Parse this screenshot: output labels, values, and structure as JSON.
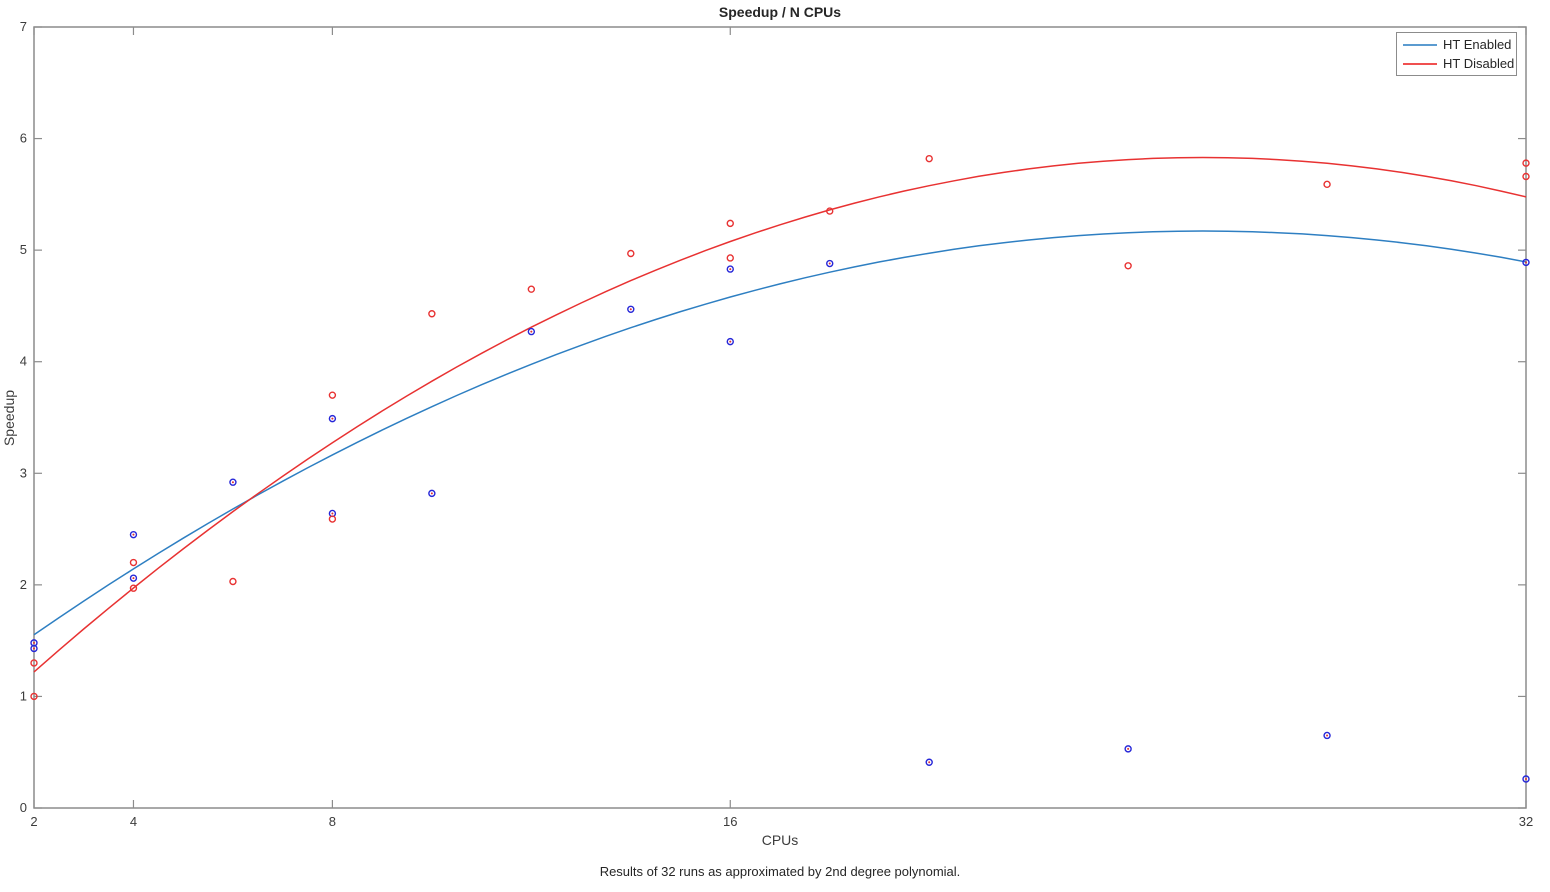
{
  "figure": {
    "title": "Speedup / N CPUs",
    "xlabel": "CPUs",
    "ylabel": "Speedup",
    "caption": "Results of 32 runs as approximated by 2nd degree polynomial."
  },
  "legend": {
    "position": "top-right",
    "items": [
      {
        "label": "HT Enabled",
        "color": "#5b9bd0"
      },
      {
        "label": "HT Disabled",
        "color": "#f05050"
      }
    ]
  },
  "colors": {
    "axis": "#8c8c8c",
    "tick_text": "#3c3c3c",
    "ht_enabled_line": "#2e7fc2",
    "ht_enabled_marker": "#2626d8",
    "ht_enabled_marker_center": "#e03030",
    "ht_disabled_line": "#e83232",
    "ht_disabled_marker": "#e83232"
  },
  "chart_data": {
    "type": "scatter",
    "title": "Speedup / N CPUs",
    "xlabel": "CPUs",
    "ylabel": "Speedup",
    "xlim": [
      2,
      32
    ],
    "ylim": [
      0,
      7
    ],
    "x_scale": "linear",
    "x_ticks": [
      2,
      4,
      8,
      16,
      32
    ],
    "y_ticks": [
      0,
      1,
      2,
      3,
      4,
      5,
      6,
      7
    ],
    "grid": false,
    "legend_position": "top-right",
    "series": [
      {
        "name": "HT Enabled",
        "kind": "scatter+poly2fit",
        "points": [
          [
            2,
            1.48
          ],
          [
            2,
            1.43
          ],
          [
            4,
            2.45
          ],
          [
            4,
            2.06
          ],
          [
            6,
            2.92
          ],
          [
            8,
            3.49
          ],
          [
            8,
            2.64
          ],
          [
            10,
            2.82
          ],
          [
            12,
            4.27
          ],
          [
            14,
            4.47
          ],
          [
            16,
            4.83
          ],
          [
            16,
            4.18
          ],
          [
            18,
            4.88
          ],
          [
            20,
            0.41
          ],
          [
            24,
            0.53
          ],
          [
            28,
            0.65
          ],
          [
            32,
            4.89
          ],
          [
            32,
            0.26
          ]
        ],
        "fit_poly2": {
          "a": -0.00655,
          "b": 0.3341,
          "c": 0.911
        }
      },
      {
        "name": "HT Disabled",
        "kind": "scatter+poly2fit",
        "points": [
          [
            2,
            1.3
          ],
          [
            2,
            1.0
          ],
          [
            4,
            2.2
          ],
          [
            4,
            1.97
          ],
          [
            6,
            2.03
          ],
          [
            8,
            3.7
          ],
          [
            8,
            2.59
          ],
          [
            10,
            4.43
          ],
          [
            12,
            4.65
          ],
          [
            14,
            4.97
          ],
          [
            16,
            5.24
          ],
          [
            16,
            4.93
          ],
          [
            18,
            5.35
          ],
          [
            20,
            5.82
          ],
          [
            24,
            4.86
          ],
          [
            28,
            5.59
          ],
          [
            32,
            5.78
          ],
          [
            32,
            5.66
          ]
        ],
        "fit_poly2": {
          "a": -0.00835,
          "b": 0.4258,
          "c": 0.402
        }
      }
    ]
  }
}
